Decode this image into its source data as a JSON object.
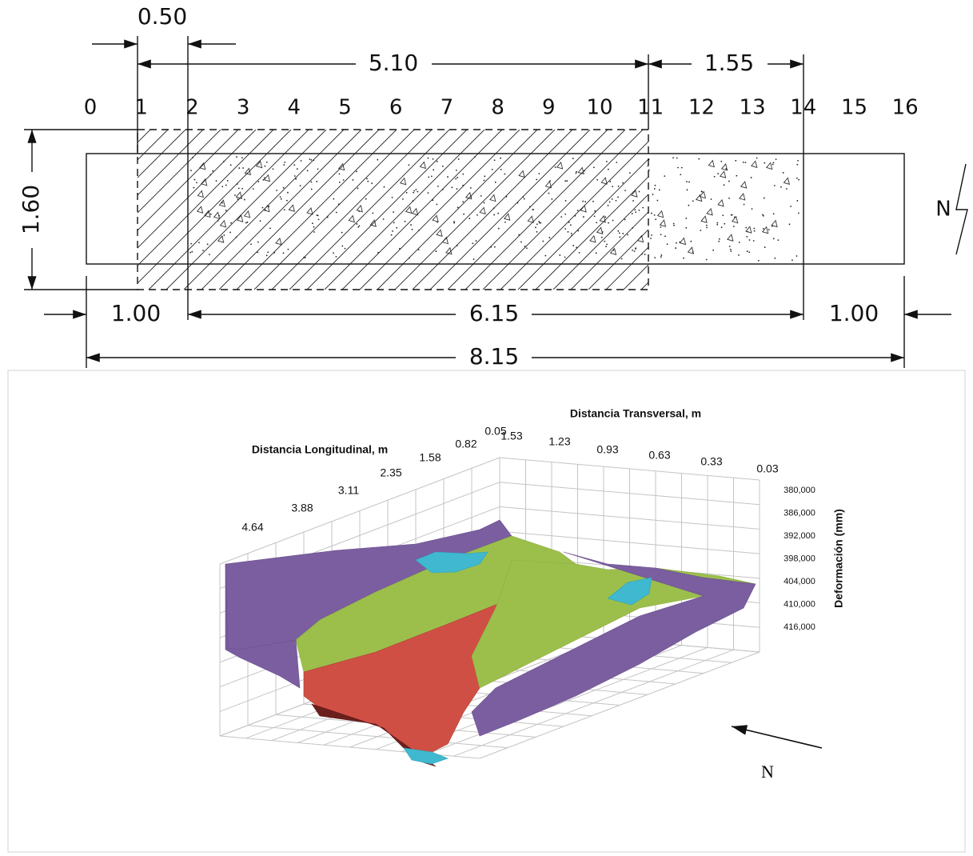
{
  "drawing": {
    "stations": [
      "0",
      "1",
      "2",
      "3",
      "4",
      "5",
      "6",
      "7",
      "8",
      "9",
      "10",
      "11",
      "12",
      "13",
      "14",
      "15",
      "16"
    ],
    "dimensions": {
      "top_left": "0.50",
      "top_middle": "5.10",
      "top_right": "1.55",
      "height": "1.60",
      "bottom_left": "1.00",
      "bottom_middle": "6.15",
      "bottom_right": "1.00",
      "total": "8.15"
    },
    "north": "N"
  },
  "surface_plot": {
    "x_axis_title": "Distancia Longitudinal, m",
    "x_ticks": [
      "0.05",
      "0.82",
      "1.58",
      "2.35",
      "3.11",
      "3.88",
      "4.64"
    ],
    "y_axis_title": "Distancia Transversal, m",
    "y_ticks": [
      "1.53",
      "1.23",
      "0.93",
      "0.63",
      "0.33",
      "0.03"
    ],
    "z_axis_title": "Deformación (mm)",
    "z_ticks": [
      "380,000",
      "386,000",
      "392,000",
      "398,000",
      "404,000",
      "410,000",
      "416,000"
    ],
    "north": "N"
  }
}
